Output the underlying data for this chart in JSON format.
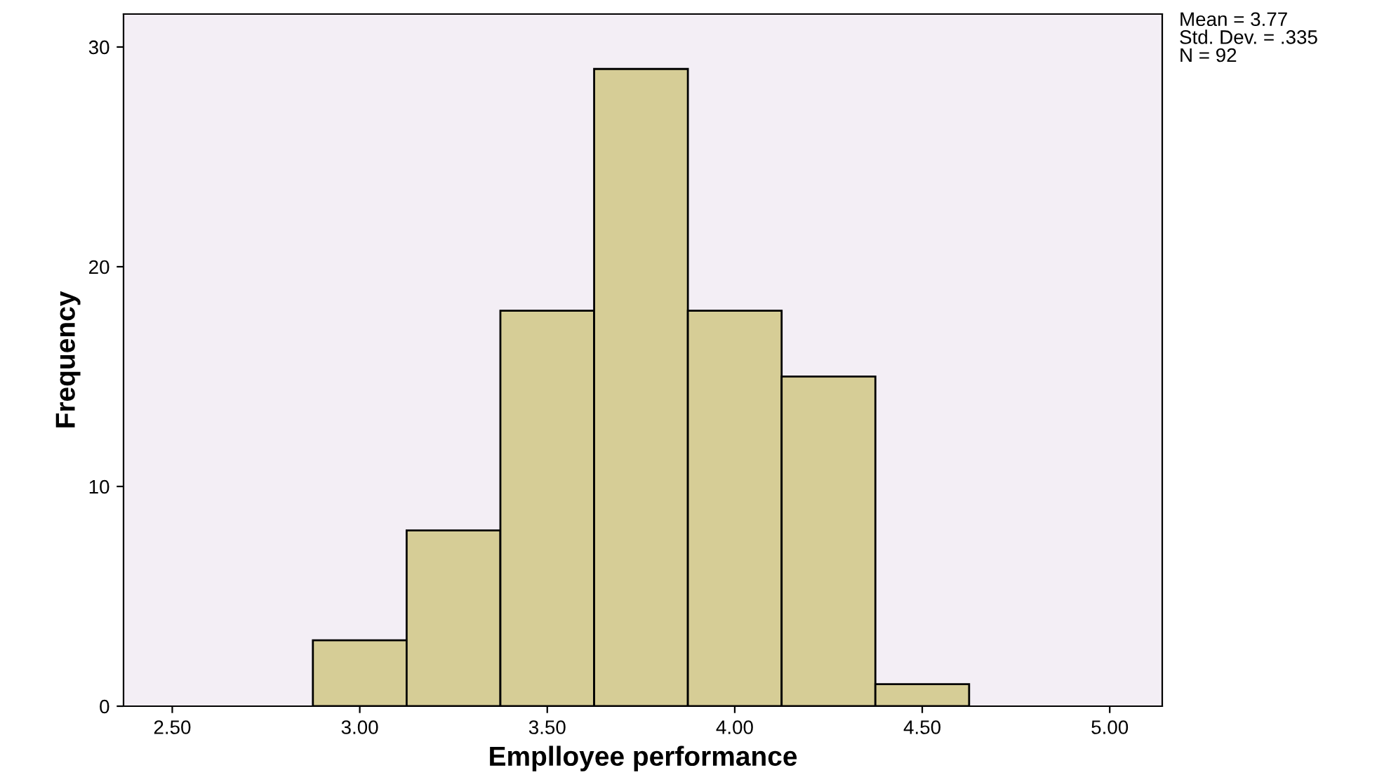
{
  "chart_data": {
    "type": "histogram",
    "xlabel": "Emplloyee performance",
    "ylabel": "Frequency",
    "bins": [
      2.875,
      3.125,
      3.375,
      3.625,
      3.875,
      4.125,
      4.375,
      4.625
    ],
    "values": [
      3,
      8,
      18,
      29,
      18,
      15,
      1
    ],
    "color": "#d6cd96",
    "xlim": [
      2.37,
      5.14
    ],
    "ylim": [
      0,
      31.5
    ],
    "xticks": [
      {
        "value": 2.5,
        "label": "2.50"
      },
      {
        "value": 3.0,
        "label": "3.00"
      },
      {
        "value": 3.5,
        "label": "3.50"
      },
      {
        "value": 4.0,
        "label": "4.00"
      },
      {
        "value": 4.5,
        "label": "4.50"
      },
      {
        "value": 5.0,
        "label": "5.00"
      }
    ],
    "yticks": [
      0,
      10,
      20,
      30
    ],
    "annotations": [
      "Mean = 3.77",
      "Std. Dev. = .335",
      "N = 92"
    ]
  }
}
